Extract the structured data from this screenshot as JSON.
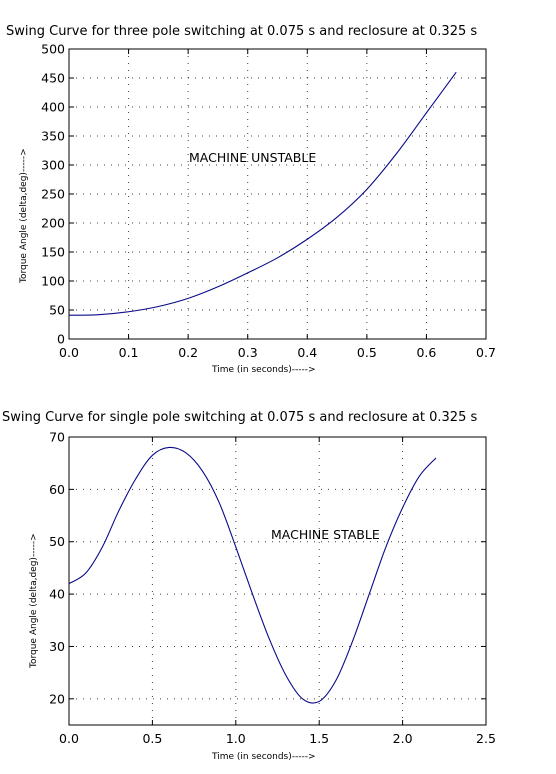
{
  "chart_data": [
    {
      "type": "line",
      "title": "Swing Curve for three pole switching at 0.075 s and reclosure at 0.325 s",
      "xlabel": "Time (in seconds)----->",
      "ylabel": "Torque Angle (delta,deg)----->",
      "annotation": "MACHINE UNSTABLE",
      "xlim": [
        0,
        0.7
      ],
      "ylim": [
        0,
        500
      ],
      "x_ticks": [
        "0.0",
        "0.1",
        "0.2",
        "0.3",
        "0.4",
        "0.5",
        "0.6",
        "0.7"
      ],
      "y_ticks": [
        "0",
        "50",
        "100",
        "150",
        "200",
        "250",
        "300",
        "350",
        "400",
        "450",
        "500"
      ],
      "grid": true,
      "line_color": "#0a0a8a",
      "series": [
        {
          "x": [
            0.0,
            0.05,
            0.1,
            0.15,
            0.2,
            0.25,
            0.3,
            0.35,
            0.4,
            0.45,
            0.5,
            0.55,
            0.6,
            0.65
          ],
          "y": [
            41,
            42,
            47,
            56,
            70,
            90,
            114,
            140,
            172,
            210,
            258,
            320,
            390,
            460
          ]
        }
      ]
    },
    {
      "type": "line",
      "title": "Swing Curve for single pole switching at 0.075 s and reclosure at 0.325 s",
      "xlabel": "Time (in seconds)----->",
      "ylabel": "Torque Angle (delta,deg)----->",
      "annotation": "MACHINE STABLE",
      "xlim": [
        0,
        2.5
      ],
      "ylim": [
        15,
        70
      ],
      "x_ticks": [
        "0.0",
        "0.5",
        "1.0",
        "1.5",
        "2.0",
        "2.5"
      ],
      "y_ticks": [
        "20",
        "30",
        "40",
        "50",
        "60",
        "70"
      ],
      "grid": true,
      "line_color": "#0a0a8a",
      "series": [
        {
          "x": [
            0.0,
            0.1,
            0.2,
            0.3,
            0.4,
            0.5,
            0.6,
            0.7,
            0.8,
            0.9,
            1.0,
            1.1,
            1.2,
            1.3,
            1.4,
            1.5,
            1.6,
            1.7,
            1.8,
            1.9,
            2.0,
            2.1,
            2.2
          ],
          "y": [
            42,
            44,
            49,
            56,
            62,
            66.5,
            68,
            67,
            63.5,
            57.5,
            49,
            40,
            31.5,
            24.5,
            20,
            19.5,
            23.5,
            31,
            40,
            49,
            56.5,
            62.5,
            66
          ]
        }
      ]
    }
  ]
}
